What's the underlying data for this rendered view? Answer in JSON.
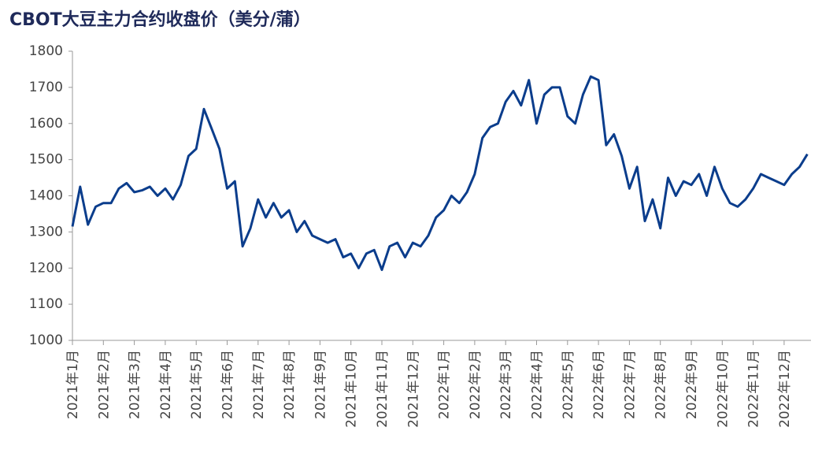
{
  "chart_data": {
    "type": "line",
    "title": "CBOT大豆主力合约收盘价（美分/蒲）",
    "categories": [
      "2021年1月",
      null,
      null,
      null,
      "2021年2月",
      null,
      null,
      null,
      "2021年3月",
      null,
      null,
      null,
      "2021年4月",
      null,
      null,
      null,
      "2021年5月",
      null,
      null,
      null,
      "2021年6月",
      null,
      null,
      null,
      "2021年7月",
      null,
      null,
      null,
      "2021年8月",
      null,
      null,
      null,
      "2021年9月",
      null,
      null,
      null,
      "2021年10月",
      null,
      null,
      null,
      "2021年11月",
      null,
      null,
      null,
      "2021年12月",
      null,
      null,
      null,
      "2022年1月",
      null,
      null,
      null,
      "2022年2月",
      null,
      null,
      null,
      "2022年3月",
      null,
      null,
      null,
      "2022年4月",
      null,
      null,
      null,
      "2022年5月",
      null,
      null,
      null,
      "2022年6月",
      null,
      null,
      null,
      "2022年7月",
      null,
      null,
      null,
      "2022年8月",
      null,
      null,
      null,
      "2022年9月",
      null,
      null,
      null,
      "2022年10月",
      null,
      null,
      null,
      "2022年11月",
      null,
      null,
      null,
      "2022年12月",
      null,
      null,
      null
    ],
    "series": [
      {
        "color": "#0b3d8c",
        "values": [
          1315,
          1425,
          1320,
          1370,
          1380,
          1380,
          1420,
          1435,
          1410,
          1415,
          1425,
          1400,
          1420,
          1390,
          1430,
          1510,
          1530,
          1640,
          1585,
          1530,
          1420,
          1440,
          1260,
          1310,
          1390,
          1340,
          1380,
          1340,
          1360,
          1300,
          1330,
          1290,
          1280,
          1270,
          1280,
          1230,
          1240,
          1200,
          1240,
          1250,
          1195,
          1260,
          1270,
          1230,
          1270,
          1260,
          1290,
          1340,
          1360,
          1400,
          1380,
          1410,
          1460,
          1560,
          1590,
          1600,
          1660,
          1690,
          1650,
          1720,
          1600,
          1680,
          1700,
          1700,
          1620,
          1600,
          1680,
          1730,
          1720,
          1540,
          1570,
          1510,
          1420,
          1480,
          1330,
          1390,
          1310,
          1450,
          1400,
          1440,
          1430,
          1460,
          1400,
          1480,
          1420,
          1380,
          1370,
          1390,
          1420,
          1460,
          1450,
          1440,
          1430,
          1460,
          1480,
          1515
        ]
      }
    ],
    "ylim": [
      1000,
      1800
    ],
    "yticks": [
      1000,
      1100,
      1200,
      1300,
      1400,
      1500,
      1600,
      1700,
      1800
    ],
    "grid": false
  }
}
